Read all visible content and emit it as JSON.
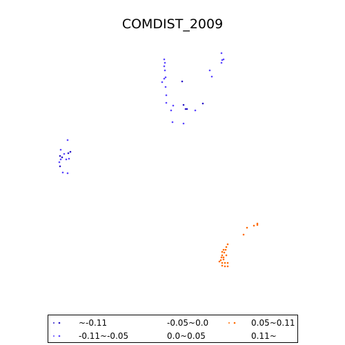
{
  "chart_data": {
    "type": "scatter",
    "title": "COMDIST_2009",
    "legend_placement": "bottom",
    "legend": [
      {
        "label": "~-0.11",
        "color": "#2a18c8"
      },
      {
        "label": "-0.11~-0.05",
        "color": "#5a44ff"
      },
      {
        "label": "-0.05~0.0",
        "color": ""
      },
      {
        "label": "0.0~0.05",
        "color": ""
      },
      {
        "label": "0.05~0.11",
        "color": "#ff6a00"
      },
      {
        "label": "0.11~",
        "color": ""
      }
    ],
    "series": [
      {
        "class": "~-0.11",
        "color": "#2a18c8",
        "points": [
          [
            264,
            118
          ],
          [
            266,
            152
          ],
          [
            269,
            158
          ],
          [
            271,
            158
          ],
          [
            294,
            150
          ],
          [
            87,
            226
          ],
          [
            90,
            228
          ],
          [
            99,
            222
          ],
          [
            102,
            220
          ],
          [
            87,
            241
          ]
        ]
      },
      {
        "class": "-0.11~-0.05",
        "color": "#5a44ff",
        "points": [
          [
            238,
            86
          ],
          [
            239,
            91
          ],
          [
            238,
            96
          ],
          [
            239,
            102
          ],
          [
            240,
            112
          ],
          [
            238,
            114
          ],
          [
            235,
            119
          ],
          [
            240,
            126
          ],
          [
            241,
            138
          ],
          [
            241,
            149
          ],
          [
            248,
            160
          ],
          [
            251,
            153
          ],
          [
            250,
            177
          ],
          [
            266,
            179
          ],
          [
            283,
            160
          ],
          [
            304,
            102
          ],
          [
            307,
            111
          ],
          [
            321,
            77
          ],
          [
            322,
            87
          ],
          [
            324,
            86
          ],
          [
            321,
            91
          ],
          [
            98,
            203
          ],
          [
            88,
            217
          ],
          [
            93,
            223
          ],
          [
            88,
            231
          ],
          [
            96,
            231
          ],
          [
            100,
            230
          ],
          [
            86,
            235
          ],
          [
            91,
            250
          ],
          [
            98,
            251
          ]
        ]
      },
      {
        "class": "0.05~0.11",
        "color": "#ff6a00",
        "points": [
          [
            358,
            330
          ],
          [
            368,
            327
          ],
          [
            373,
            324
          ],
          [
            373,
            326
          ],
          [
            353,
            340
          ],
          [
            330,
            354
          ],
          [
            328,
            358
          ],
          [
            324,
            362
          ],
          [
            322,
            365
          ],
          [
            327,
            362
          ],
          [
            325,
            366
          ],
          [
            322,
            370
          ],
          [
            328,
            370
          ],
          [
            321,
            373
          ],
          [
            324,
            373
          ],
          [
            320,
            377
          ],
          [
            324,
            376
          ],
          [
            318,
            379
          ],
          [
            322,
            381
          ],
          [
            326,
            381
          ],
          [
            330,
            381
          ],
          [
            322,
            385
          ],
          [
            326,
            386
          ],
          [
            330,
            386
          ]
        ]
      }
    ]
  }
}
